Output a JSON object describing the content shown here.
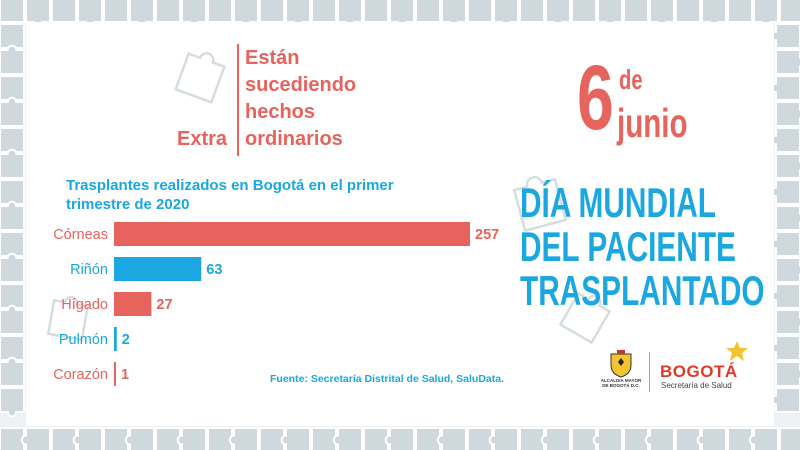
{
  "headline": {
    "line1": "Están",
    "line2": "sucediendo",
    "line3": "hechos",
    "line4_left": "Extra",
    "line4_right": "ordinarios"
  },
  "date": {
    "day": "6",
    "de": "de",
    "month": "junio"
  },
  "event": {
    "line1": "DÍA MUNDIAL",
    "line2": "DEL PACIENTE",
    "line3": "TRASPLANTADO"
  },
  "logos": {
    "alcaldia": "ALCALDÍA MAYOR DE BOGOTÁ D.C.",
    "bogota": "BOGOTÁ",
    "bogota_sub": "Secretaría de Salud"
  },
  "colors": {
    "coral": "#e7635d",
    "blue": "#1ba7df",
    "puzzle": "#cfd8dc"
  },
  "chart_data": {
    "type": "bar",
    "orientation": "horizontal",
    "title": "Trasplantes realizados en Bogotá en el primer trimestre de 2020",
    "categories": [
      "Córneas",
      "Riñón",
      "Hígado",
      "Pulmón",
      "Corazón"
    ],
    "values": [
      257,
      63,
      27,
      2,
      1
    ],
    "bar_colors": [
      "#e7635d",
      "#1ba7df",
      "#e7635d",
      "#1ba7df",
      "#e7635d"
    ],
    "xlim": [
      0,
      257
    ],
    "grid": false,
    "source": "Fuente: Secretaría Distrital de Salud, SaluData."
  }
}
